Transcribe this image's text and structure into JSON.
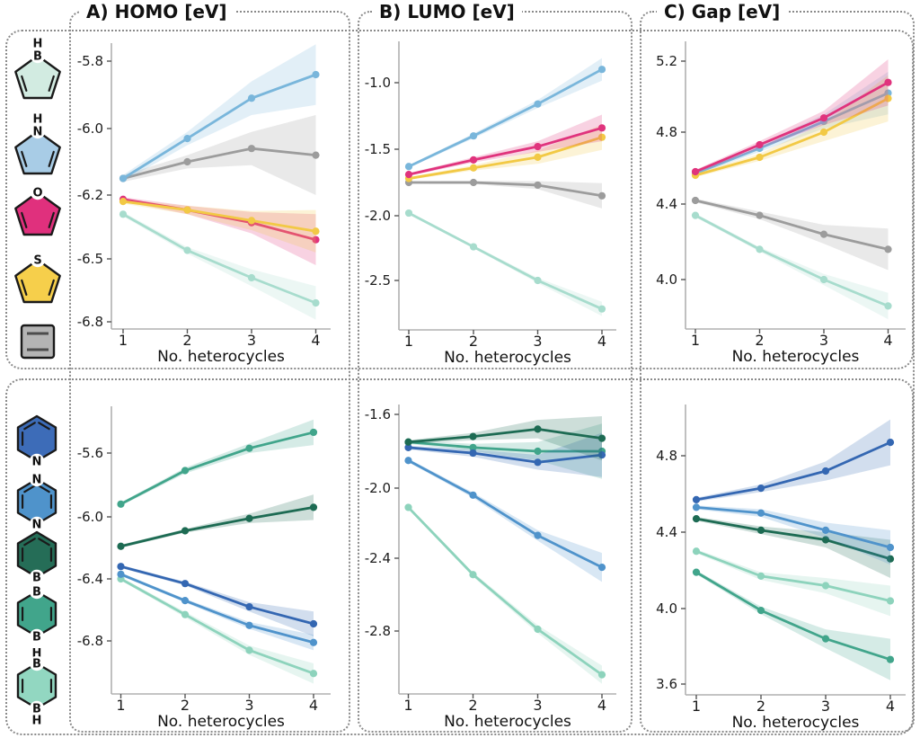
{
  "column_titles": [
    "A) HOMO [eV]",
    "B) LUMO [eV]",
    "C) Gap [eV]"
  ],
  "xlabel": "No. heterocycles",
  "legend": {
    "top_icons": [
      {
        "id": "borole",
        "shape": "pentagon",
        "fill": "#d2ebe1",
        "atoms_top": [
          "H",
          "B"
        ],
        "atoms_bottom": [],
        "bonds": [
          "l",
          "r"
        ]
      },
      {
        "id": "pyrrole",
        "shape": "pentagon",
        "fill": "#a8cce6",
        "atoms_top": [
          "H",
          "N"
        ],
        "atoms_bottom": [],
        "bonds": [
          "l",
          "r"
        ]
      },
      {
        "id": "furan",
        "shape": "pentagon",
        "fill": "#e0307d",
        "atoms_top": [
          "O"
        ],
        "atoms_bottom": [],
        "bonds": [
          "l",
          "r"
        ]
      },
      {
        "id": "thiophene",
        "shape": "pentagon",
        "fill": "#f6cf4b",
        "atoms_top": [
          "S"
        ],
        "atoms_bottom": [],
        "bonds": [
          "l",
          "r"
        ]
      },
      {
        "id": "plain-ring",
        "shape": "square",
        "fill": "#b4b4b4",
        "atoms_top": [],
        "atoms_bottom": [],
        "bonds": []
      }
    ],
    "bottom_icons": [
      {
        "id": "pyridine",
        "shape": "hexagon",
        "fill": "#3d6cb8",
        "atoms_top": [],
        "atoms_bottom": [
          "N"
        ],
        "bonds": [
          "tl",
          "tr",
          "l"
        ]
      },
      {
        "id": "diazine",
        "shape": "hexagon",
        "fill": "#4f93cb",
        "atoms_top": [
          "N"
        ],
        "atoms_bottom": [
          "N"
        ],
        "bonds": [
          "tl",
          "tr",
          "l",
          "r"
        ]
      },
      {
        "id": "borinine",
        "shape": "hexagon",
        "fill": "#256d57",
        "atoms_top": [],
        "atoms_bottom": [
          "B"
        ],
        "bonds": [
          "tl",
          "tr",
          "l",
          "r"
        ]
      },
      {
        "id": "diborinine",
        "shape": "hexagon",
        "fill": "#41a58b",
        "atoms_top": [
          "B"
        ],
        "atoms_bottom": [
          "B"
        ],
        "bonds": [
          "l",
          "r"
        ]
      },
      {
        "id": "dihydrodiborinine",
        "shape": "hexagon",
        "fill": "#92d7c1",
        "atoms_top": [
          "H",
          "B"
        ],
        "atoms_bottom": [
          "B",
          "H"
        ],
        "bonds": [
          "l",
          "r"
        ]
      }
    ]
  },
  "chart_data": [
    {
      "type": "line",
      "panel": "homo-five-membered",
      "title": "A) HOMO [eV]",
      "x": [
        1,
        2,
        3,
        4
      ],
      "xlabel": "No. heterocycles",
      "xtick_labels": [
        "1",
        "2",
        "3",
        "4"
      ],
      "ytick_labels": [
        "-5.8",
        "-6.0",
        "-6.2",
        "-6.5",
        "-6.8"
      ],
      "ytick_values": [
        -5.8,
        -6.0,
        -6.2,
        -6.5,
        -6.8
      ],
      "grid": false,
      "legend_position": "none",
      "tick_spacing": "uniform",
      "series": [
        {
          "name": "plain-ring",
          "color": "#9c9c9c",
          "values": [
            -6.15,
            -6.1,
            -6.06,
            -6.08
          ],
          "band_halfwidth": [
            0.01,
            0.02,
            0.05,
            0.12
          ]
        },
        {
          "name": "pyrrole",
          "color": "#79b6db",
          "values": [
            -6.15,
            -6.03,
            -5.91,
            -5.84
          ],
          "band_halfwidth": [
            0.01,
            0.02,
            0.05,
            0.09
          ]
        },
        {
          "name": "furan",
          "color": "#e0337d",
          "values": [
            -6.22,
            -6.27,
            -6.33,
            -6.41
          ],
          "band_halfwidth": [
            0.01,
            0.02,
            0.05,
            0.12
          ]
        },
        {
          "name": "thiophene",
          "color": "#f2c945",
          "values": [
            -6.23,
            -6.27,
            -6.32,
            -6.37
          ],
          "band_halfwidth": [
            0.01,
            0.02,
            0.045,
            0.1
          ]
        },
        {
          "name": "borole",
          "color": "#a7dccd",
          "values": [
            -6.29,
            -6.46,
            -6.59,
            -6.71
          ],
          "band_halfwidth": [
            0.01,
            0.015,
            0.04,
            0.08
          ]
        }
      ]
    },
    {
      "type": "line",
      "panel": "lumo-five-membered",
      "title": "B) LUMO [eV]",
      "x": [
        1,
        2,
        3,
        4
      ],
      "xlabel": "No. heterocycles",
      "xtick_labels": [
        "1",
        "2",
        "3",
        "4"
      ],
      "ytick_labels": [
        "-1.0",
        "-1.5",
        "-2.0",
        "-2.5"
      ],
      "ytick_values": [
        -1.0,
        -1.5,
        -2.0,
        -2.5
      ],
      "grid": false,
      "legend_position": "none",
      "tick_spacing": "uniform",
      "series": [
        {
          "name": "plain-ring",
          "color": "#9c9c9c",
          "values": [
            -1.75,
            -1.75,
            -1.77,
            -1.85
          ],
          "band_halfwidth": [
            0.01,
            0.012,
            0.03,
            0.095
          ]
        },
        {
          "name": "borole",
          "color": "#a7dccd",
          "values": [
            -1.98,
            -2.24,
            -2.5,
            -2.72
          ],
          "band_halfwidth": [
            0.01,
            0.012,
            0.02,
            0.055
          ]
        },
        {
          "name": "thiophene",
          "color": "#f2c945",
          "values": [
            -1.72,
            -1.64,
            -1.56,
            -1.41
          ],
          "band_halfwidth": [
            0.01,
            0.02,
            0.05,
            0.095
          ]
        },
        {
          "name": "furan",
          "color": "#e0337d",
          "values": [
            -1.69,
            -1.58,
            -1.48,
            -1.34
          ],
          "band_halfwidth": [
            0.01,
            0.02,
            0.04,
            0.1
          ]
        },
        {
          "name": "pyrrole",
          "color": "#79b6db",
          "values": [
            -1.63,
            -1.4,
            -1.16,
            -0.9
          ],
          "band_halfwidth": [
            0.01,
            0.018,
            0.03,
            0.085
          ]
        }
      ]
    },
    {
      "type": "line",
      "panel": "gap-five-membered",
      "title": "C) Gap [eV]",
      "x": [
        1,
        2,
        3,
        4
      ],
      "xlabel": "No. heterocycles",
      "xtick_labels": [
        "1",
        "2",
        "3",
        "4"
      ],
      "ytick_labels": [
        "5.2",
        "4.8",
        "4.4",
        "4.0"
      ],
      "ytick_values": [
        5.2,
        4.8,
        4.4,
        4.0
      ],
      "grid": false,
      "legend_position": "none",
      "tick_spacing": "uniform",
      "series": [
        {
          "name": "plain-ring",
          "color": "#9c9c9c",
          "values": [
            4.42,
            4.34,
            4.24,
            4.16
          ],
          "band_halfwidth": [
            0.01,
            0.02,
            0.05,
            0.11
          ]
        },
        {
          "name": "borole",
          "color": "#a7dccd",
          "values": [
            4.34,
            4.16,
            4.0,
            3.86
          ],
          "band_halfwidth": [
            0.01,
            0.012,
            0.03,
            0.07
          ]
        },
        {
          "name": "pyrrole",
          "color": "#79b6db",
          "values": [
            4.57,
            4.71,
            4.86,
            5.02
          ],
          "band_halfwidth": [
            0.01,
            0.02,
            0.04,
            0.12
          ]
        },
        {
          "name": "thiophene",
          "color": "#f2c945",
          "values": [
            4.56,
            4.66,
            4.8,
            4.99
          ],
          "band_halfwidth": [
            0.01,
            0.02,
            0.05,
            0.13
          ]
        },
        {
          "name": "furan",
          "color": "#e0337d",
          "values": [
            4.58,
            4.73,
            4.88,
            5.08
          ],
          "band_halfwidth": [
            0.01,
            0.02,
            0.04,
            0.13
          ]
        }
      ]
    },
    {
      "type": "line",
      "panel": "homo-six-membered",
      "title": "",
      "x": [
        1,
        2,
        3,
        4
      ],
      "xlabel": "No. heterocycles",
      "xtick_labels": [
        "1",
        "2",
        "3",
        "4"
      ],
      "ytick_labels": [
        "-5.6",
        "-6.0",
        "-6.4",
        "-6.8"
      ],
      "ytick_values": [
        -5.6,
        -6.0,
        -6.4,
        -6.8
      ],
      "grid": false,
      "legend_position": "none",
      "tick_spacing": "uniform",
      "series": [
        {
          "name": "dihydrodiborinine",
          "color": "#8dd3bc",
          "values": [
            -6.4,
            -6.63,
            -6.86,
            -7.01
          ],
          "band_halfwidth": [
            0.01,
            0.018,
            0.03,
            0.065
          ]
        },
        {
          "name": "diazine",
          "color": "#4f93cb",
          "values": [
            -6.37,
            -6.54,
            -6.7,
            -6.81
          ],
          "band_halfwidth": [
            0.01,
            0.012,
            0.022,
            0.05
          ]
        },
        {
          "name": "pyridine",
          "color": "#3467b2",
          "values": [
            -6.32,
            -6.43,
            -6.58,
            -6.69
          ],
          "band_halfwidth": [
            0.01,
            0.012,
            0.03,
            0.08
          ]
        },
        {
          "name": "borinine",
          "color": "#1d6b53",
          "values": [
            -6.19,
            -6.09,
            -6.01,
            -5.94
          ],
          "band_halfwidth": [
            0.01,
            0.012,
            0.03,
            0.08
          ]
        },
        {
          "name": "diborinine",
          "color": "#41a58b",
          "values": [
            -5.92,
            -5.71,
            -5.57,
            -5.47
          ],
          "band_halfwidth": [
            0.01,
            0.018,
            0.03,
            0.08
          ]
        }
      ]
    },
    {
      "type": "line",
      "panel": "lumo-six-membered",
      "title": "",
      "x": [
        1,
        2,
        3,
        4
      ],
      "xlabel": "No. heterocycles",
      "xtick_labels": [
        "1",
        "2",
        "3",
        "4"
      ],
      "ytick_labels": [
        "-1.6",
        "-2.0",
        "-2.4",
        "-2.8"
      ],
      "ytick_values": [
        -1.6,
        -2.0,
        -2.4,
        -2.8
      ],
      "grid": false,
      "legend_position": "none",
      "tick_spacing": "uniform",
      "series": [
        {
          "name": "dihydrodiborinine",
          "color": "#8dd3bc",
          "values": [
            -2.11,
            -2.49,
            -2.79,
            -3.04
          ],
          "band_halfwidth": [
            0.01,
            0.012,
            0.022,
            0.05
          ]
        },
        {
          "name": "diazine",
          "color": "#4f93cb",
          "values": [
            -1.85,
            -2.04,
            -2.27,
            -2.45
          ],
          "band_halfwidth": [
            0.01,
            0.015,
            0.03,
            0.08
          ]
        },
        {
          "name": "diborinine",
          "color": "#41a58b",
          "values": [
            -1.75,
            -1.78,
            -1.8,
            -1.8
          ],
          "band_halfwidth": [
            0.01,
            0.02,
            0.05,
            0.15
          ]
        },
        {
          "name": "pyridine",
          "color": "#3467b2",
          "values": [
            -1.78,
            -1.81,
            -1.86,
            -1.82
          ],
          "band_halfwidth": [
            0.01,
            0.02,
            0.04,
            0.12
          ]
        },
        {
          "name": "borinine",
          "color": "#1d6b53",
          "values": [
            -1.75,
            -1.72,
            -1.68,
            -1.73
          ],
          "band_halfwidth": [
            0.01,
            0.02,
            0.05,
            0.12
          ]
        }
      ]
    },
    {
      "type": "line",
      "panel": "gap-six-membered",
      "title": "",
      "x": [
        1,
        2,
        3,
        4
      ],
      "xlabel": "No. heterocycles",
      "xtick_labels": [
        "1",
        "2",
        "3",
        "4"
      ],
      "ytick_labels": [
        "4.8",
        "4.4",
        "4.0",
        "3.6"
      ],
      "ytick_values": [
        4.8,
        4.4,
        4.0,
        3.6
      ],
      "grid": false,
      "legend_position": "none",
      "tick_spacing": "uniform",
      "series": [
        {
          "name": "diborinine",
          "color": "#41a58b",
          "values": [
            4.19,
            3.99,
            3.84,
            3.73
          ],
          "band_halfwidth": [
            0.01,
            0.02,
            0.05,
            0.11
          ]
        },
        {
          "name": "dihydrodiborinine",
          "color": "#8dd3bc",
          "values": [
            4.3,
            4.17,
            4.12,
            4.04
          ],
          "band_halfwidth": [
            0.01,
            0.02,
            0.04,
            0.08
          ]
        },
        {
          "name": "borinine",
          "color": "#1d6b53",
          "values": [
            4.47,
            4.41,
            4.36,
            4.26
          ],
          "band_halfwidth": [
            0.01,
            0.02,
            0.04,
            0.1
          ]
        },
        {
          "name": "diazine",
          "color": "#4f93cb",
          "values": [
            4.53,
            4.5,
            4.41,
            4.32
          ],
          "band_halfwidth": [
            0.01,
            0.02,
            0.04,
            0.09
          ]
        },
        {
          "name": "pyridine",
          "color": "#3467b2",
          "values": [
            4.57,
            4.63,
            4.72,
            4.87
          ],
          "band_halfwidth": [
            0.01,
            0.02,
            0.05,
            0.12
          ]
        }
      ]
    }
  ]
}
